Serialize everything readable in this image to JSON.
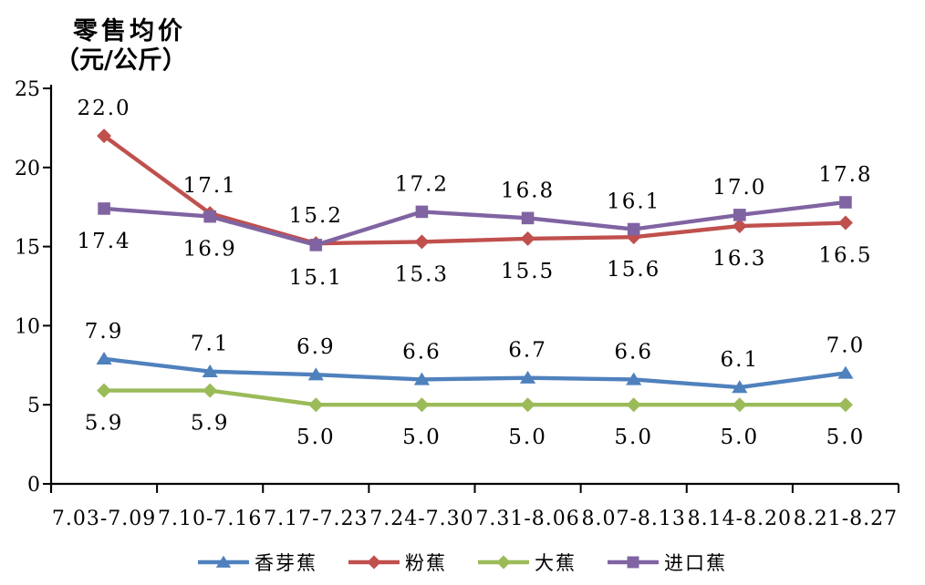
{
  "chart_data": {
    "type": "line",
    "title": "零售均价",
    "title_unit": "（元/公斤）",
    "categories": [
      "7.03-7.09",
      "7.10-7.16",
      "7.17-7.23",
      "7.24-7.30",
      "7.31-8.06",
      "8.07-8.13",
      "8.14-8.20",
      "8.21-8.27"
    ],
    "y_axis": {
      "min": 0,
      "max": 25,
      "step": 5,
      "ticks": [
        0,
        5,
        10,
        15,
        20,
        25
      ],
      "tick_labels": [
        "0",
        "5",
        "10",
        "15",
        "20",
        "25"
      ]
    },
    "grid": false,
    "legend_position": "bottom",
    "axis_color": "#000000",
    "series": [
      {
        "name": "香芽蕉",
        "color": "#4F81BD",
        "marker": "triangle",
        "values": [
          7.9,
          7.1,
          6.9,
          6.6,
          6.7,
          6.6,
          6.1,
          7.0
        ],
        "labels": [
          "7.9",
          "7.1",
          "6.9",
          "6.6",
          "6.7",
          "6.6",
          "6.1",
          "7.0"
        ],
        "label_side": [
          "above",
          "above",
          "above",
          "above",
          "above",
          "above",
          "above",
          "above"
        ]
      },
      {
        "name": "粉蕉",
        "color": "#C0504D",
        "marker": "diamond",
        "values": [
          22.0,
          17.1,
          15.2,
          15.3,
          15.5,
          15.6,
          16.3,
          16.5
        ],
        "labels": [
          "22.0",
          "17.1",
          "15.2",
          "15.3",
          "15.5",
          "15.6",
          "16.3",
          "16.5"
        ],
        "label_side": [
          "above",
          "above",
          "above",
          "below",
          "below",
          "below",
          "below",
          "below"
        ]
      },
      {
        "name": "大蕉",
        "color": "#9BBB59",
        "marker": "diamond",
        "values": [
          5.9,
          5.9,
          5.0,
          5.0,
          5.0,
          5.0,
          5.0,
          5.0
        ],
        "labels": [
          "5.9",
          "5.9",
          "5.0",
          "5.0",
          "5.0",
          "5.0",
          "5.0",
          "5.0"
        ],
        "label_side": [
          "below",
          "below",
          "below",
          "below",
          "below",
          "below",
          "below",
          "below"
        ]
      },
      {
        "name": "进口蕉",
        "color": "#8064A2",
        "marker": "square",
        "values": [
          17.4,
          16.9,
          15.1,
          17.2,
          16.8,
          16.1,
          17.0,
          17.8
        ],
        "labels": [
          "17.4",
          "16.9",
          "15.1",
          "17.2",
          "16.8",
          "16.1",
          "17.0",
          "17.8"
        ],
        "label_side": [
          "below",
          "below",
          "below",
          "above",
          "above",
          "above",
          "above",
          "above"
        ]
      }
    ]
  }
}
